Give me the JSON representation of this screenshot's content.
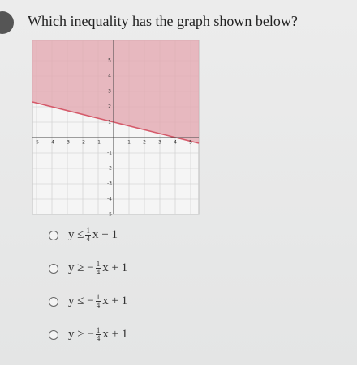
{
  "question": "Which inequality has the graph shown below?",
  "graph": {
    "xticks": [
      -5,
      -4,
      -3,
      -2,
      -1,
      1,
      2,
      3,
      4,
      5
    ],
    "yticks": [
      5,
      4,
      3,
      2,
      1,
      -1,
      -2,
      -3,
      -4,
      -5
    ]
  },
  "options": [
    {
      "before": "y ≤",
      "num": "1",
      "den": "4",
      "after": "x + 1"
    },
    {
      "before": "y ≥ −",
      "num": "1",
      "den": "4",
      "after": "x + 1"
    },
    {
      "before": "y ≤ −",
      "num": "1",
      "den": "4",
      "after": "x + 1"
    },
    {
      "before": "y > −",
      "num": "1",
      "den": "4",
      "after": "x + 1"
    }
  ]
}
